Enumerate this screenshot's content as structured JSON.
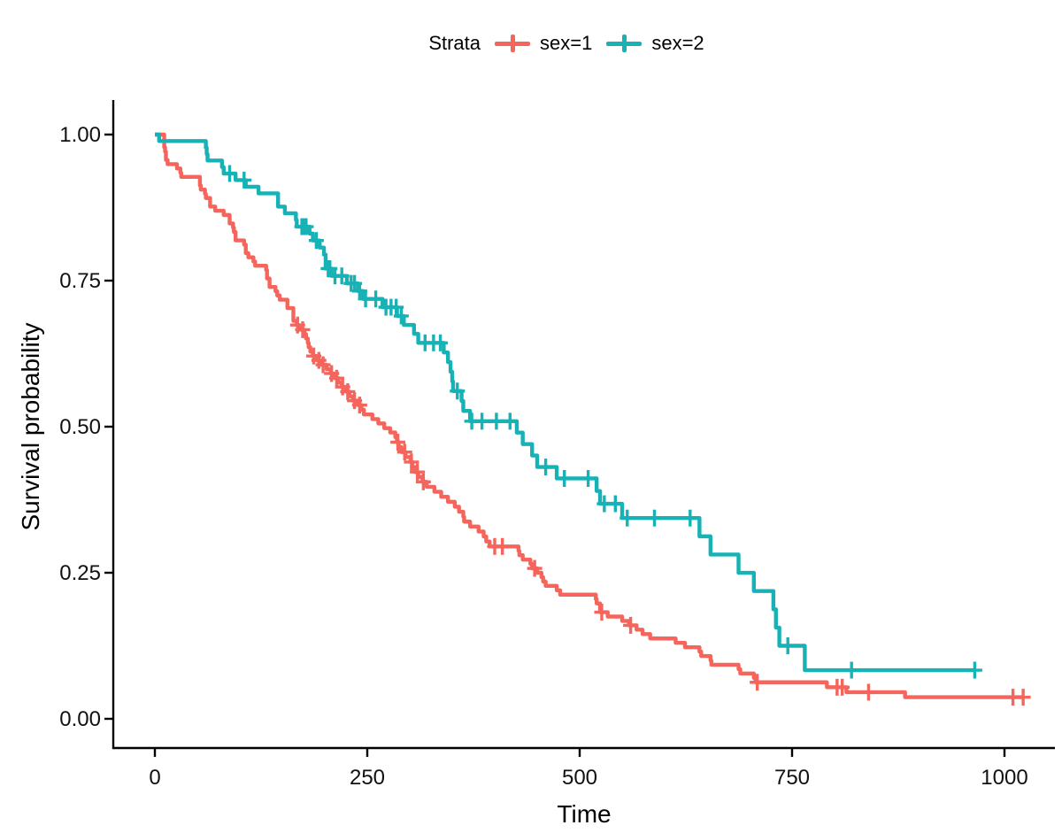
{
  "figure": {
    "legend": {
      "title": "Strata",
      "entries": [
        {
          "id": "sex1",
          "label": "sex=1",
          "color": "#F5655C"
        },
        {
          "id": "sex2",
          "label": "sex=2",
          "color": "#17B2B6"
        }
      ]
    },
    "x_axis": {
      "label": "Time",
      "tick_labels": [
        "0",
        "250",
        "500",
        "750",
        "1000"
      ]
    },
    "y_axis": {
      "label": "Survival probability",
      "tick_labels": [
        "0.00",
        "0.25",
        "0.50",
        "0.75",
        "1.00"
      ]
    }
  },
  "chart_data": {
    "type": "line",
    "subtype": "kaplan-meier-step",
    "title": "",
    "xlabel": "Time",
    "ylabel": "Survival probability",
    "xlim": [
      0,
      1060
    ],
    "ylim": [
      0,
      1
    ],
    "x_ticks": [
      0,
      250,
      500,
      750,
      1000
    ],
    "y_ticks": [
      0,
      0.25,
      0.5,
      0.75,
      1
    ],
    "grid": false,
    "legend_title": "Strata",
    "legend_position": "top",
    "axis_color": "#000000",
    "series": [
      {
        "name": "sex=1",
        "color": "#F5655C",
        "points": [
          [
            0,
            1.0
          ],
          [
            11,
            0.9783
          ],
          [
            12,
            0.971
          ],
          [
            13,
            0.9565
          ],
          [
            15,
            0.9493
          ],
          [
            26,
            0.942
          ],
          [
            30,
            0.9348
          ],
          [
            31,
            0.9275
          ],
          [
            53,
            0.913
          ],
          [
            54,
            0.9058
          ],
          [
            59,
            0.8986
          ],
          [
            60,
            0.8913
          ],
          [
            65,
            0.8768
          ],
          [
            71,
            0.8696
          ],
          [
            81,
            0.8623
          ],
          [
            88,
            0.8478
          ],
          [
            92,
            0.8406
          ],
          [
            93,
            0.8333
          ],
          [
            95,
            0.8188
          ],
          [
            105,
            0.8116
          ],
          [
            107,
            0.7971
          ],
          [
            110,
            0.7899
          ],
          [
            116,
            0.7826
          ],
          [
            118,
            0.7754
          ],
          [
            131,
            0.7681
          ],
          [
            132,
            0.7536
          ],
          [
            135,
            0.7391
          ],
          [
            142,
            0.7319
          ],
          [
            144,
            0.7246
          ],
          [
            147,
            0.7174
          ],
          [
            156,
            0.7029
          ],
          [
            163,
            0.6812
          ],
          [
            167,
            0.674
          ],
          [
            170,
            0.666
          ],
          [
            176,
            0.6585
          ],
          [
            178,
            0.651
          ],
          [
            180,
            0.6435
          ],
          [
            181,
            0.636
          ],
          [
            183,
            0.6285
          ],
          [
            186,
            0.621
          ],
          [
            191,
            0.6135
          ],
          [
            196,
            0.606
          ],
          [
            202,
            0.5985
          ],
          [
            207,
            0.591
          ],
          [
            212,
            0.583
          ],
          [
            216,
            0.5755
          ],
          [
            220,
            0.568
          ],
          [
            225,
            0.56
          ],
          [
            229,
            0.552
          ],
          [
            233,
            0.5445
          ],
          [
            239,
            0.537
          ],
          [
            243,
            0.529
          ],
          [
            246,
            0.521
          ],
          [
            256,
            0.513
          ],
          [
            263,
            0.5055
          ],
          [
            270,
            0.4975
          ],
          [
            277,
            0.49
          ],
          [
            283,
            0.482
          ],
          [
            285,
            0.4735
          ],
          [
            287,
            0.465
          ],
          [
            290,
            0.4565
          ],
          [
            295,
            0.448
          ],
          [
            301,
            0.4395
          ],
          [
            303,
            0.431
          ],
          [
            306,
            0.4225
          ],
          [
            310,
            0.414
          ],
          [
            315,
            0.4055
          ],
          [
            320,
            0.397
          ],
          [
            329,
            0.3885
          ],
          [
            337,
            0.38
          ],
          [
            345,
            0.3715
          ],
          [
            353,
            0.363
          ],
          [
            358,
            0.3545
          ],
          [
            363,
            0.346
          ],
          [
            364,
            0.3375
          ],
          [
            371,
            0.329
          ],
          [
            381,
            0.3205
          ],
          [
            387,
            0.312
          ],
          [
            390,
            0.3035
          ],
          [
            394,
            0.295
          ],
          [
            428,
            0.2875
          ],
          [
            429,
            0.28
          ],
          [
            433,
            0.2725
          ],
          [
            442,
            0.265
          ],
          [
            444,
            0.2575
          ],
          [
            450,
            0.25
          ],
          [
            455,
            0.2425
          ],
          [
            457,
            0.235
          ],
          [
            460,
            0.2275
          ],
          [
            473,
            0.22
          ],
          [
            477,
            0.2125
          ],
          [
            519,
            0.205
          ],
          [
            520,
            0.1975
          ],
          [
            524,
            0.1825
          ],
          [
            533,
            0.175
          ],
          [
            550,
            0.1675
          ],
          [
            558,
            0.16
          ],
          [
            567,
            0.1525
          ],
          [
            574,
            0.145
          ],
          [
            583,
            0.1375
          ],
          [
            613,
            0.13
          ],
          [
            624,
            0.1225
          ],
          [
            641,
            0.115
          ],
          [
            643,
            0.1075
          ],
          [
            654,
            0.1
          ],
          [
            655,
            0.0925
          ],
          [
            687,
            0.085
          ],
          [
            689,
            0.0775
          ],
          [
            705,
            0.07
          ],
          [
            707,
            0.0625
          ],
          [
            791,
            0.054
          ],
          [
            814,
            0.0455
          ],
          [
            883,
            0.037
          ],
          [
            1022,
            0.037
          ]
        ],
        "censor_times": [
          168,
          174,
          187,
          193,
          198,
          208,
          214,
          221,
          227,
          235,
          241,
          286,
          294,
          302,
          309,
          316,
          400,
          409,
          447,
          526,
          560,
          709,
          803,
          809,
          840,
          1010,
          1022
        ]
      },
      {
        "name": "sex=2",
        "color": "#17B2B6",
        "points": [
          [
            0,
            1.0
          ],
          [
            5,
            0.9889
          ],
          [
            60,
            0.9778
          ],
          [
            61,
            0.9667
          ],
          [
            62,
            0.9556
          ],
          [
            79,
            0.9444
          ],
          [
            81,
            0.9333
          ],
          [
            95,
            0.9221
          ],
          [
            107,
            0.9107
          ],
          [
            122,
            0.8993
          ],
          [
            145,
            0.8766
          ],
          [
            153,
            0.8652
          ],
          [
            166,
            0.8538
          ],
          [
            167,
            0.8424
          ],
          [
            182,
            0.8305
          ],
          [
            186,
            0.8187
          ],
          [
            194,
            0.8066
          ],
          [
            199,
            0.7946
          ],
          [
            201,
            0.7705
          ],
          [
            208,
            0.7581
          ],
          [
            226,
            0.7452
          ],
          [
            239,
            0.7322
          ],
          [
            245,
            0.7186
          ],
          [
            268,
            0.7045
          ],
          [
            285,
            0.6895
          ],
          [
            293,
            0.6742
          ],
          [
            305,
            0.6589
          ],
          [
            310,
            0.6435
          ],
          [
            340,
            0.627
          ],
          [
            345,
            0.6105
          ],
          [
            348,
            0.594
          ],
          [
            350,
            0.5775
          ],
          [
            351,
            0.561
          ],
          [
            361,
            0.544
          ],
          [
            363,
            0.527
          ],
          [
            371,
            0.5094
          ],
          [
            426,
            0.4898
          ],
          [
            433,
            0.4702
          ],
          [
            444,
            0.4506
          ],
          [
            450,
            0.431
          ],
          [
            473,
            0.4114
          ],
          [
            520,
            0.3898
          ],
          [
            524,
            0.3681
          ],
          [
            550,
            0.3436
          ],
          [
            641,
            0.3123
          ],
          [
            654,
            0.2811
          ],
          [
            687,
            0.2499
          ],
          [
            705,
            0.2187
          ],
          [
            728,
            0.1874
          ],
          [
            731,
            0.1562
          ],
          [
            735,
            0.125
          ],
          [
            765,
            0.0833
          ],
          [
            965,
            0.0833
          ]
        ],
        "censor_times": [
          88,
          105,
          173,
          175,
          178,
          190,
          204,
          206,
          212,
          220,
          231,
          235,
          241,
          248,
          260,
          272,
          278,
          284,
          290,
          318,
          328,
          336,
          356,
          373,
          385,
          402,
          418,
          460,
          482,
          510,
          529,
          542,
          556,
          588,
          630,
          745,
          820,
          965
        ]
      }
    ]
  }
}
